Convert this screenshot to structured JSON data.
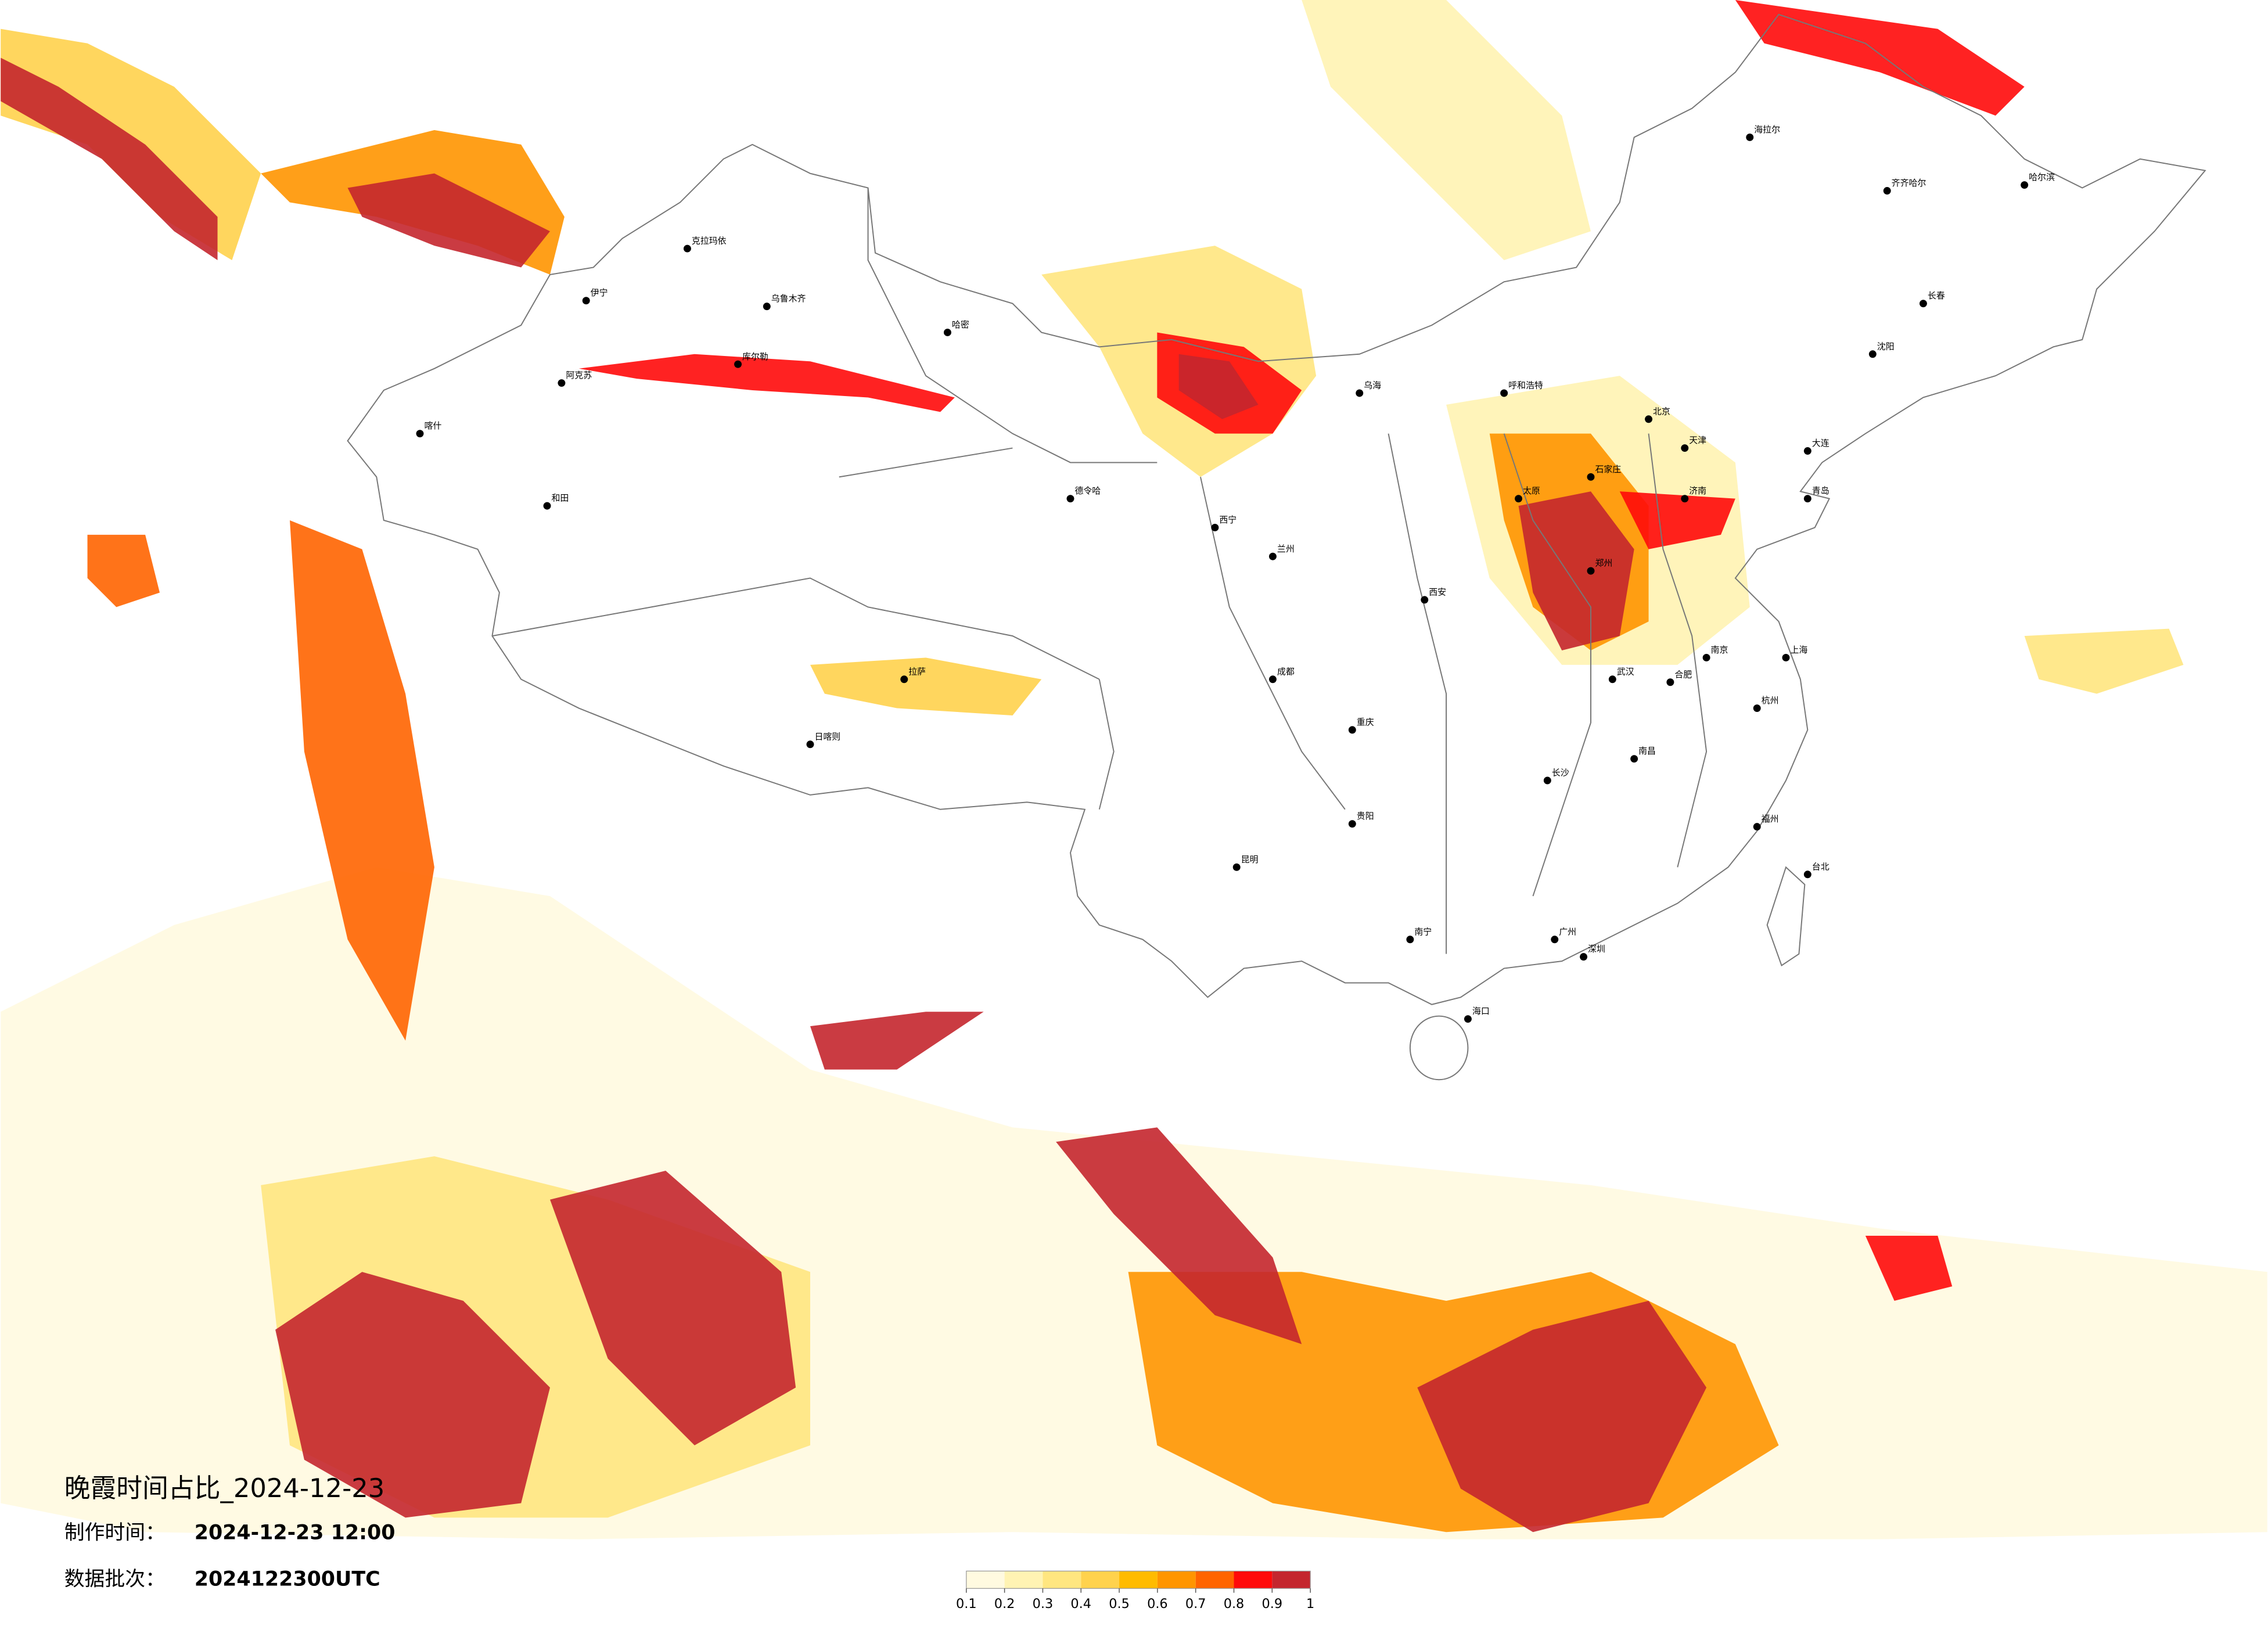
{
  "title": "晚霞时间占比_2024-12-23",
  "made_label": "制作时间：",
  "made_time": "2024-12-23 12:00",
  "batch_label": "数据批次：",
  "batch": "2024122300UTC",
  "colorbar": {
    "ticks": [
      0.1,
      0.2,
      0.3,
      0.4,
      0.5,
      0.6,
      0.7,
      0.8,
      0.9,
      1
    ],
    "colors": [
      "#fffae0",
      "#fff3b3",
      "#ffe680",
      "#ffd24d",
      "#ffbb00",
      "#ff9500",
      "#ff6400",
      "#ff0a0a",
      "#c4262e"
    ]
  },
  "cities": [
    "喀什",
    "和田",
    "阿克苏",
    "乌鲁木齐",
    "伊宁",
    "克拉玛依",
    "哈密",
    "库尔勒",
    "拉萨",
    "日喀则",
    "德令哈",
    "西宁",
    "兰州",
    "乌海",
    "呼和浩特",
    "北京",
    "天津",
    "石家庄",
    "太原",
    "西安",
    "郑州",
    "武汉",
    "长沙",
    "南昌",
    "杭州",
    "上海",
    "南京",
    "合肥",
    "福州",
    "广州",
    "深圳",
    "南宁",
    "海口",
    "昆明",
    "贵阳",
    "成都",
    "重庆",
    "哈尔滨",
    "长春",
    "沈阳",
    "大连",
    "济南",
    "青岛",
    "齐齐哈尔",
    "海拉尔",
    "台北"
  ]
}
